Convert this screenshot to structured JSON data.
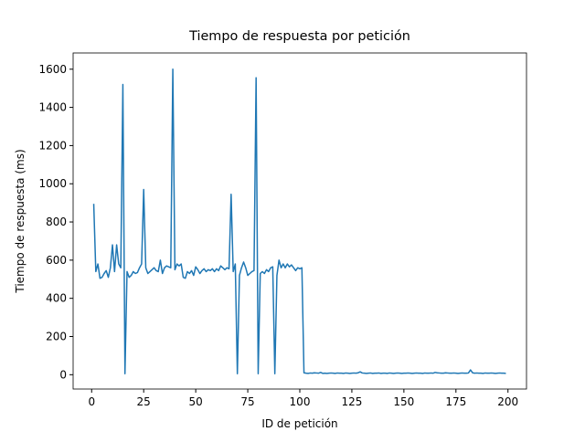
{
  "chart_data": {
    "type": "line",
    "title": "Tiempo de respuesta por petición",
    "x_label": "ID de petición",
    "y_label": "Tiempo de respuesta (ms)",
    "xlim": [
      -8.9,
      208.9
    ],
    "ylim": [
      -75,
      1685
    ],
    "xticks": [
      0,
      25,
      50,
      75,
      100,
      125,
      150,
      175,
      200
    ],
    "yticks": [
      0,
      200,
      400,
      600,
      800,
      1000,
      1200,
      1400,
      1600
    ],
    "color": "#1f77b4",
    "x": [
      1,
      2,
      3,
      4,
      5,
      6,
      7,
      8,
      9,
      10,
      11,
      12,
      13,
      14,
      15,
      16,
      17,
      18,
      19,
      20,
      21,
      22,
      23,
      24,
      25,
      26,
      27,
      28,
      29,
      30,
      31,
      32,
      33,
      34,
      35,
      36,
      37,
      38,
      39,
      40,
      41,
      42,
      43,
      44,
      45,
      46,
      47,
      48,
      49,
      50,
      51,
      52,
      53,
      54,
      55,
      56,
      57,
      58,
      59,
      60,
      61,
      62,
      63,
      64,
      65,
      66,
      67,
      68,
      69,
      70,
      71,
      72,
      73,
      74,
      75,
      76,
      77,
      78,
      79,
      80,
      81,
      82,
      83,
      84,
      85,
      86,
      87,
      88,
      89,
      90,
      91,
      92,
      93,
      94,
      95,
      96,
      97,
      98,
      99,
      100,
      101,
      102,
      103,
      104,
      105,
      106,
      107,
      108,
      109,
      110,
      111,
      112,
      113,
      114,
      115,
      116,
      117,
      118,
      119,
      120,
      121,
      122,
      123,
      124,
      125,
      126,
      127,
      128,
      129,
      130,
      131,
      132,
      133,
      134,
      135,
      136,
      137,
      138,
      139,
      140,
      141,
      142,
      143,
      144,
      145,
      146,
      147,
      148,
      149,
      150,
      151,
      152,
      153,
      154,
      155,
      156,
      157,
      158,
      159,
      160,
      161,
      162,
      163,
      164,
      165,
      166,
      167,
      168,
      169,
      170,
      171,
      172,
      173,
      174,
      175,
      176,
      177,
      178,
      179,
      180,
      181,
      182,
      183,
      184,
      185,
      186,
      187,
      188,
      189,
      190,
      191,
      192,
      193,
      194,
      195,
      196,
      197,
      198,
      199
    ],
    "values": [
      895,
      540,
      580,
      505,
      510,
      530,
      545,
      510,
      560,
      680,
      540,
      680,
      580,
      560,
      1520,
      5,
      540,
      510,
      520,
      540,
      530,
      535,
      560,
      580,
      970,
      560,
      530,
      540,
      550,
      560,
      545,
      540,
      600,
      530,
      560,
      570,
      565,
      560,
      1600,
      550,
      580,
      570,
      580,
      510,
      505,
      540,
      530,
      545,
      520,
      565,
      550,
      530,
      545,
      555,
      540,
      550,
      545,
      555,
      540,
      555,
      545,
      570,
      560,
      550,
      560,
      555,
      945,
      540,
      580,
      5,
      520,
      560,
      590,
      560,
      520,
      530,
      540,
      545,
      1555,
      5,
      530,
      540,
      530,
      550,
      540,
      560,
      565,
      5,
      520,
      600,
      560,
      580,
      560,
      580,
      565,
      575,
      560,
      545,
      560,
      555,
      560,
      10,
      8,
      7,
      9,
      8,
      10,
      9,
      8,
      12,
      7,
      8,
      7,
      8,
      9,
      8,
      7,
      9,
      8,
      8,
      7,
      9,
      8,
      7,
      8,
      9,
      8,
      10,
      15,
      9,
      8,
      7,
      8,
      9,
      7,
      8,
      8,
      9,
      7,
      8,
      8,
      7,
      9,
      8,
      7,
      8,
      9,
      8,
      7,
      8,
      8,
      9,
      8,
      7,
      8,
      9,
      8,
      8,
      7,
      9,
      8,
      8,
      9,
      8,
      12,
      10,
      9,
      8,
      8,
      10,
      9,
      8,
      8,
      9,
      8,
      7,
      8,
      9,
      8,
      8,
      9,
      25,
      10,
      8,
      9,
      8,
      8,
      7,
      9,
      8,
      8,
      9,
      8,
      7,
      8,
      9,
      8,
      8,
      7
    ]
  }
}
